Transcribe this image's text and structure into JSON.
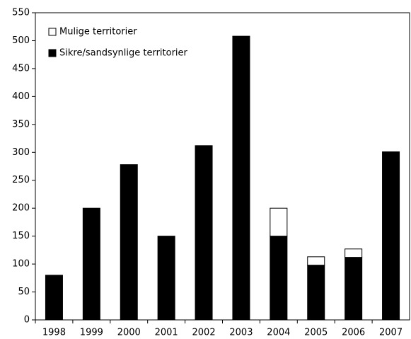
{
  "chart_data": {
    "type": "stacked_bar",
    "categories": [
      "1998",
      "1999",
      "2000",
      "2001",
      "2002",
      "2003",
      "2004",
      "2005",
      "2006",
      "2007"
    ],
    "series": [
      {
        "name": "Sikre/sandsynlige territorier",
        "color": "#000000",
        "values": [
          80,
          200,
          278,
          150,
          312,
          508,
          150,
          98,
          112,
          301
        ]
      },
      {
        "name": "Mulige territorier",
        "color": "#ffffff",
        "values": [
          0,
          0,
          0,
          0,
          0,
          0,
          50,
          15,
          15,
          0
        ]
      }
    ],
    "ylim": [
      0,
      550
    ],
    "yticks": [
      0,
      50,
      100,
      150,
      200,
      250,
      300,
      350,
      400,
      450,
      500,
      550
    ],
    "legend": "upper left"
  }
}
